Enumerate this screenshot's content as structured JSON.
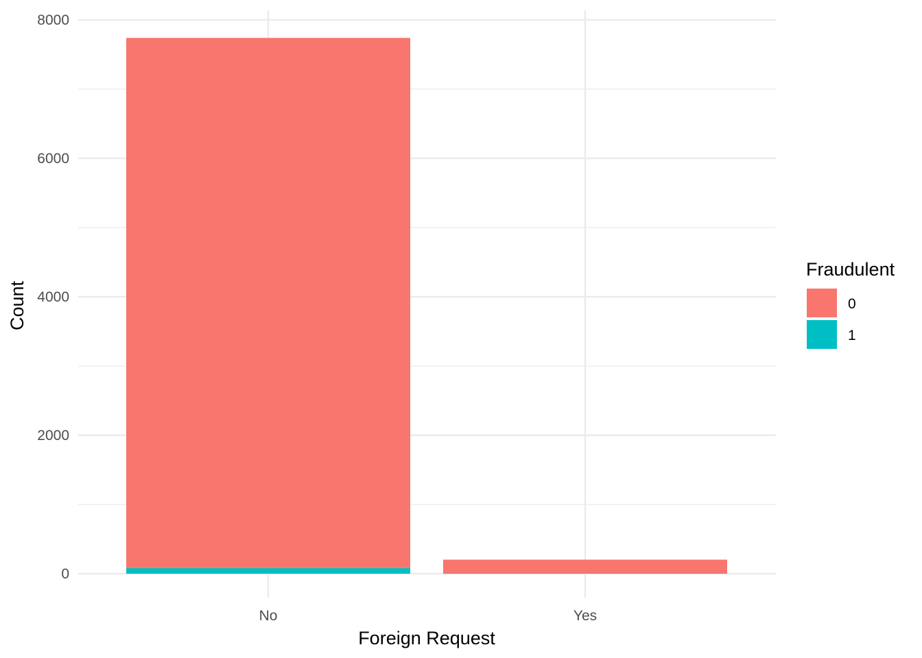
{
  "chart_data": {
    "type": "bar",
    "stacked": true,
    "title": "",
    "xlabel": "Foreign Request",
    "ylabel": "Count",
    "categories": [
      "No",
      "Yes"
    ],
    "series": [
      {
        "name": "0",
        "values": [
          7660,
          198
        ],
        "color": "#F8766D"
      },
      {
        "name": "1",
        "values": [
          80,
          5
        ],
        "color": "#00BFC4"
      }
    ],
    "ylim": [
      0,
      8000
    ],
    "yticks": [
      0,
      2000,
      4000,
      6000,
      8000
    ],
    "y_minor_ticks": [
      1000,
      3000,
      5000,
      7000
    ],
    "grid": true,
    "legend": {
      "title": "Fraudulent",
      "position": "right",
      "items": [
        "0",
        "1"
      ]
    },
    "colors": {
      "fraud_0": "#F8766D",
      "fraud_1": "#00BFC4",
      "grid": "#EBEBEB",
      "tick_text": "#4D4D4D"
    }
  }
}
